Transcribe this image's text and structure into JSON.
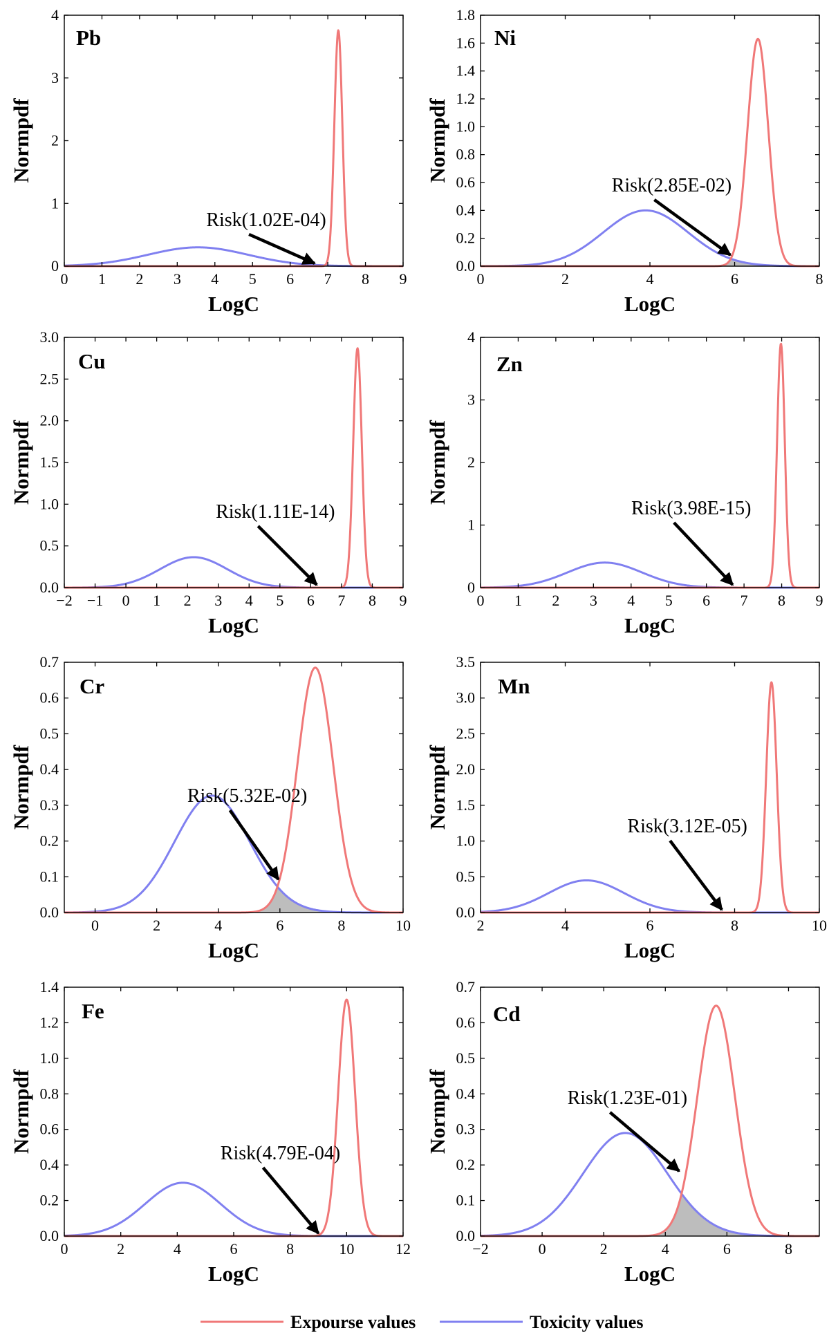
{
  "colors": {
    "exposure": "#f07878",
    "toxicity": "#8080f0",
    "overlap": "#bdbdbd",
    "arrow": "#000000"
  },
  "legend": {
    "exposure_label": "Expourse values",
    "toxicity_label": "Toxicity values"
  },
  "chart_data": [
    {
      "type": "line",
      "panel": "Pb",
      "xlabel": "LogC",
      "ylabel": "Normpdf",
      "xlim": [
        0,
        9
      ],
      "ylim": [
        0,
        4
      ],
      "xticks": [
        0,
        1,
        2,
        3,
        4,
        5,
        6,
        7,
        8,
        9
      ],
      "yticks": [
        0,
        1,
        2,
        3,
        4
      ],
      "ydecimals": 0,
      "series": [
        {
          "name": "Exposure values",
          "kind": "normal",
          "mean": 7.28,
          "sd": 0.106,
          "peak": 3.76
        },
        {
          "name": "Toxicity values",
          "kind": "normal",
          "mean": 3.55,
          "sd": 1.33,
          "peak": 0.3
        }
      ],
      "annotation": {
        "text": "Risk(1.02E-04)",
        "target": [
          6.65,
          0.0
        ]
      },
      "shaded": false
    },
    {
      "type": "line",
      "panel": "Ni",
      "xlabel": "LogC",
      "ylabel": "Normpdf",
      "xlim": [
        0,
        8
      ],
      "ylim": [
        0,
        1.8
      ],
      "xticks": [
        0,
        2,
        4,
        6,
        8
      ],
      "yticks": [
        0,
        0.2,
        0.4,
        0.6,
        0.8,
        1.0,
        1.2,
        1.4,
        1.6,
        1.8
      ],
      "ydecimals": 1,
      "series": [
        {
          "name": "Exposure values",
          "kind": "normal",
          "mean": 6.55,
          "sd": 0.245,
          "peak": 1.63
        },
        {
          "name": "Toxicity values",
          "kind": "normal",
          "mean": 3.9,
          "sd": 1.0,
          "peak": 0.4
        }
      ],
      "annotation": {
        "text": "Risk(2.85E-02)",
        "target": [
          5.9,
          0.06
        ]
      },
      "shaded": true
    },
    {
      "type": "line",
      "panel": "Cu",
      "xlabel": "LogC",
      "ylabel": "Normpdf",
      "xlim": [
        -2,
        9
      ],
      "ylim": [
        0,
        3.0
      ],
      "xticks": [
        -2,
        -1,
        0,
        1,
        2,
        3,
        4,
        5,
        6,
        7,
        8,
        9
      ],
      "yticks": [
        0,
        0.5,
        1.0,
        1.5,
        2.0,
        2.5,
        3.0
      ],
      "ydecimals": 1,
      "series": [
        {
          "name": "Exposure values",
          "kind": "normal",
          "mean": 7.52,
          "sd": 0.139,
          "peak": 2.87
        },
        {
          "name": "Toxicity values",
          "kind": "normal",
          "mean": 2.2,
          "sd": 1.09,
          "peak": 0.365
        }
      ],
      "annotation": {
        "text": "Risk(1.11E-14)",
        "target": [
          6.2,
          0.0
        ]
      },
      "shaded": false
    },
    {
      "type": "line",
      "panel": "Zn",
      "xlabel": "LogC",
      "ylabel": "Normpdf",
      "xlim": [
        0,
        9
      ],
      "ylim": [
        0,
        4
      ],
      "xticks": [
        0,
        1,
        2,
        3,
        4,
        5,
        6,
        7,
        8,
        9
      ],
      "yticks": [
        0,
        1,
        2,
        3,
        4
      ],
      "ydecimals": 0,
      "series": [
        {
          "name": "Exposure values",
          "kind": "normal",
          "mean": 7.98,
          "sd": 0.102,
          "peak": 3.9
        },
        {
          "name": "Toxicity values",
          "kind": "normal",
          "mean": 3.3,
          "sd": 0.99,
          "peak": 0.4
        }
      ],
      "annotation": {
        "text": "Risk(3.98E-15)",
        "target": [
          6.7,
          0.0
        ]
      },
      "shaded": false
    },
    {
      "type": "line",
      "panel": "Cr",
      "xlabel": "LogC",
      "ylabel": "Normpdf",
      "xlim": [
        -1,
        10
      ],
      "ylim": [
        0,
        0.7
      ],
      "xticks": [
        0,
        2,
        4,
        6,
        8,
        10
      ],
      "yticks": [
        0,
        0.1,
        0.2,
        0.3,
        0.4,
        0.5,
        0.6,
        0.7
      ],
      "ydecimals": 1,
      "series": [
        {
          "name": "Exposure values",
          "kind": "normal",
          "mean": 7.15,
          "sd": 0.58,
          "peak": 0.685
        },
        {
          "name": "Toxicity values",
          "kind": "normal",
          "mean": 3.8,
          "sd": 1.22,
          "peak": 0.327
        }
      ],
      "annotation": {
        "text": "Risk(5.32E-02)",
        "target": [
          5.95,
          0.085
        ]
      },
      "shaded": true
    },
    {
      "type": "line",
      "panel": "Mn",
      "xlabel": "LogC",
      "ylabel": "Normpdf",
      "xlim": [
        2,
        10
      ],
      "ylim": [
        0,
        3.5
      ],
      "xticks": [
        2,
        4,
        6,
        8,
        10
      ],
      "yticks": [
        0,
        0.5,
        1.0,
        1.5,
        2.0,
        2.5,
        3.0,
        3.5
      ],
      "ydecimals": 1,
      "series": [
        {
          "name": "Exposure values",
          "kind": "normal",
          "mean": 8.87,
          "sd": 0.124,
          "peak": 3.22
        },
        {
          "name": "Toxicity values",
          "kind": "normal",
          "mean": 4.5,
          "sd": 0.89,
          "peak": 0.45
        }
      ],
      "annotation": {
        "text": "Risk(3.12E-05)",
        "target": [
          7.7,
          0.0
        ]
      },
      "shaded": false
    },
    {
      "type": "line",
      "panel": "Fe",
      "xlabel": "LogC",
      "ylabel": "Normpdf",
      "xlim": [
        0,
        12
      ],
      "ylim": [
        0,
        1.4
      ],
      "xticks": [
        0,
        2,
        4,
        6,
        8,
        10,
        12
      ],
      "yticks": [
        0,
        0.2,
        0.4,
        0.6,
        0.8,
        1.0,
        1.2,
        1.4
      ],
      "ydecimals": 1,
      "series": [
        {
          "name": "Exposure values",
          "kind": "normal",
          "mean": 10.0,
          "sd": 0.3,
          "peak": 1.33
        },
        {
          "name": "Toxicity values",
          "kind": "normal",
          "mean": 4.2,
          "sd": 1.33,
          "peak": 0.3
        }
      ],
      "annotation": {
        "text": "Risk(4.79E-04)",
        "target": [
          9.0,
          0.0
        ]
      },
      "shaded": false
    },
    {
      "type": "line",
      "panel": "Cd",
      "xlabel": "LogC",
      "ylabel": "Normpdf",
      "xlim": [
        -2,
        9
      ],
      "ylim": [
        0,
        0.7
      ],
      "xticks": [
        -2,
        0,
        2,
        4,
        6,
        8
      ],
      "yticks": [
        0,
        0.1,
        0.2,
        0.3,
        0.4,
        0.5,
        0.6,
        0.7
      ],
      "ydecimals": 1,
      "series": [
        {
          "name": "Exposure values",
          "kind": "normal",
          "mean": 5.65,
          "sd": 0.61,
          "peak": 0.648
        },
        {
          "name": "Toxicity values",
          "kind": "normal",
          "mean": 2.7,
          "sd": 1.37,
          "peak": 0.29
        }
      ],
      "annotation": {
        "text": "Risk(1.23E-01)",
        "target": [
          4.45,
          0.175
        ]
      },
      "shaded": true
    }
  ]
}
